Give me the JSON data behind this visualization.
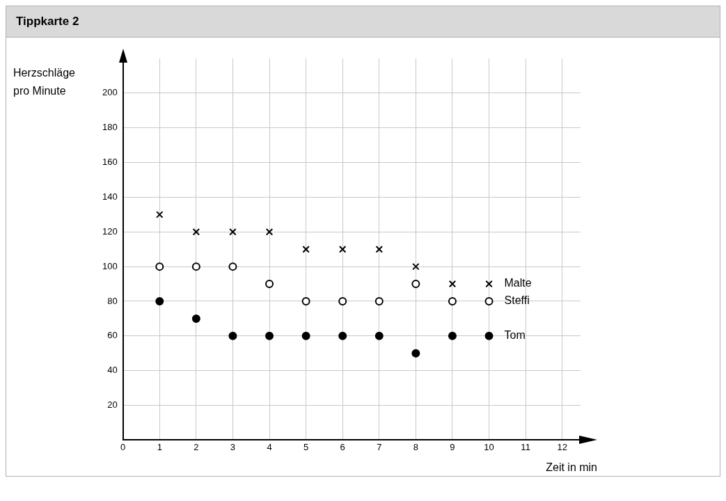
{
  "chart_data": {
    "type": "scatter",
    "title": "Tippkarte 2",
    "xlabel": "Zeit in min",
    "ylabel": "Herzschläge pro Minute",
    "x": [
      1,
      2,
      3,
      4,
      5,
      6,
      7,
      8,
      9,
      10
    ],
    "series": [
      {
        "name": "Malte",
        "color": "#000000",
        "marker": "cross",
        "values": [
          130,
          120,
          120,
          120,
          110,
          110,
          110,
          100,
          90,
          90
        ]
      },
      {
        "name": "Steffi",
        "color": "#ffffff",
        "marker": "circle",
        "values": [
          100,
          100,
          100,
          90,
          80,
          80,
          80,
          90,
          80,
          80
        ]
      },
      {
        "name": "Tom",
        "color": "#000000",
        "marker": "circle",
        "values": [
          80,
          70,
          60,
          60,
          60,
          60,
          60,
          50,
          60,
          60
        ]
      }
    ],
    "xlim": [
      0,
      12.5
    ],
    "ylim": [
      0,
      220
    ],
    "xticks": [
      0,
      1,
      2,
      3,
      4,
      5,
      6,
      7,
      8,
      9,
      10,
      11,
      12
    ],
    "yticks": [
      20,
      40,
      60,
      80,
      100,
      120,
      140,
      160,
      180,
      200
    ],
    "grid": true,
    "legend": false
  }
}
